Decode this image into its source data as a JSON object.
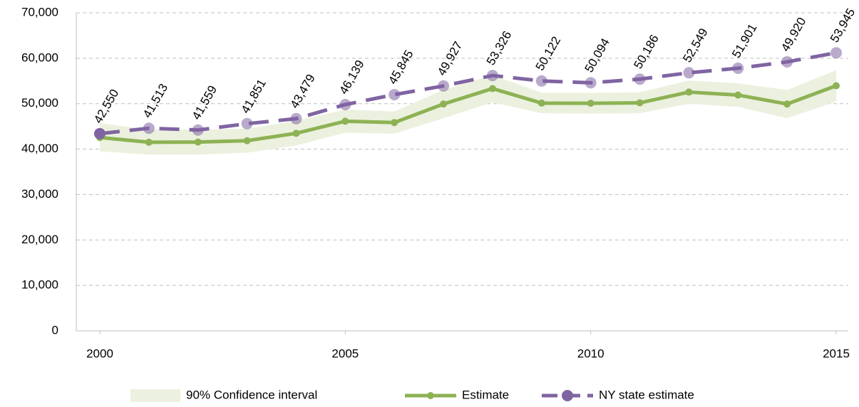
{
  "chart_data": {
    "type": "line",
    "x": [
      2000,
      2001,
      2002,
      2003,
      2004,
      2005,
      2006,
      2007,
      2008,
      2009,
      2010,
      2011,
      2012,
      2013,
      2014,
      2015
    ],
    "xlim": [
      2000,
      2015
    ],
    "xticks": [
      2000,
      2005,
      2010,
      2015
    ],
    "ylim": [
      0,
      70000
    ],
    "yticks": [
      0,
      {
        "value": 10000,
        "label": "10,000"
      },
      {
        "value": 20000,
        "label": "20,000"
      },
      {
        "value": 30000,
        "label": "30,000"
      },
      {
        "value": 40000,
        "label": "40,000"
      },
      {
        "value": 50000,
        "label": "50,000"
      },
      {
        "value": 60000,
        "label": "60,000"
      },
      {
        "value": 70000,
        "label": "70,000"
      }
    ],
    "grid": true,
    "legend": "bottom",
    "series": [
      {
        "name": "90% Confidence interval",
        "color": "#ebf1de",
        "lower": [
          39500,
          38800,
          38800,
          39200,
          40800,
          43600,
          43400,
          46800,
          50300,
          47900,
          47800,
          47900,
          50000,
          49300,
          46800,
          50500
        ],
        "upper": [
          45700,
          44300,
          44300,
          44500,
          46200,
          48700,
          48300,
          53000,
          56300,
          52400,
          52400,
          52500,
          55100,
          54500,
          53000,
          57400
        ]
      },
      {
        "name": "Estimate",
        "color": "#8db254",
        "values": [
          42550,
          41513,
          41559,
          41851,
          43479,
          46139,
          45845,
          49927,
          53326,
          50122,
          50094,
          50186,
          52549,
          51901,
          49920,
          53945
        ],
        "value_labels": [
          "42,550",
          "41,513",
          "41,559",
          "41,851",
          "43,479",
          "46,139",
          "45,845",
          "49,927",
          "53,326",
          "50,122",
          "50,094",
          "50,186",
          "52,549",
          "51,901",
          "49,920",
          "53,945"
        ]
      },
      {
        "name": "NY state estimate",
        "color": "#8064a2",
        "values": [
          43400,
          44600,
          44200,
          45600,
          46700,
          49800,
          52000,
          53900,
          56200,
          55000,
          54600,
          55400,
          56800,
          57800,
          59200,
          61200
        ]
      }
    ]
  }
}
